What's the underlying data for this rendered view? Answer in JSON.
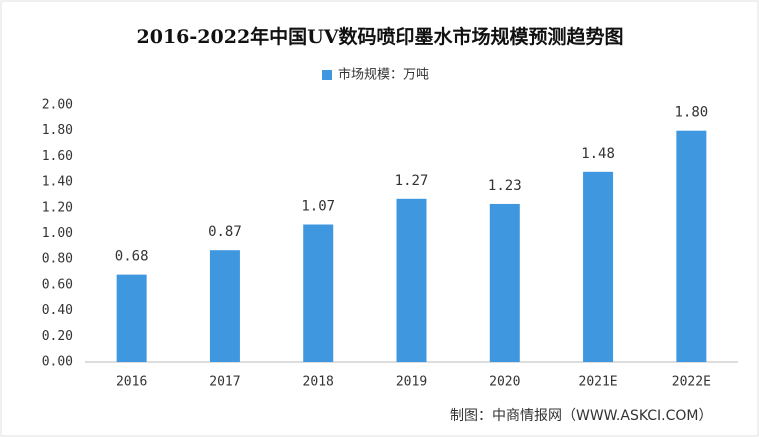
{
  "chart_data": {
    "type": "bar",
    "title": "2016-2022年中国UV数码喷印墨水市场规模预测趋势图",
    "categories": [
      "2016",
      "2017",
      "2018",
      "2019",
      "2020",
      "2021E",
      "2022E"
    ],
    "series": [
      {
        "name": "市场规模：万吨",
        "color": "#3f97e0",
        "values": [
          0.68,
          0.87,
          1.07,
          1.27,
          1.23,
          1.48,
          1.8
        ],
        "value_labels": [
          "0.68",
          "0.87",
          "1.07",
          "1.27",
          "1.23",
          "1.48",
          "1.80"
        ]
      }
    ],
    "ylim": [
      0,
      2
    ],
    "yticks": [
      {
        "value": 0,
        "label": "0.00"
      },
      {
        "value": 0.2,
        "label": "0.20"
      },
      {
        "value": 0.4,
        "label": "0.40"
      },
      {
        "value": 0.6,
        "label": "0.60"
      },
      {
        "value": 0.8,
        "label": "0.80"
      },
      {
        "value": 1,
        "label": "1.00"
      },
      {
        "value": 1.2,
        "label": "1.20"
      },
      {
        "value": 1.4,
        "label": "1.40"
      },
      {
        "value": 1.6,
        "label": "1.60"
      },
      {
        "value": 1.8,
        "label": "1.80"
      },
      {
        "value": 2,
        "label": "2.00"
      }
    ],
    "grid": false,
    "source": "制图：中商情报网（WWW.ASKCI.COM）"
  }
}
